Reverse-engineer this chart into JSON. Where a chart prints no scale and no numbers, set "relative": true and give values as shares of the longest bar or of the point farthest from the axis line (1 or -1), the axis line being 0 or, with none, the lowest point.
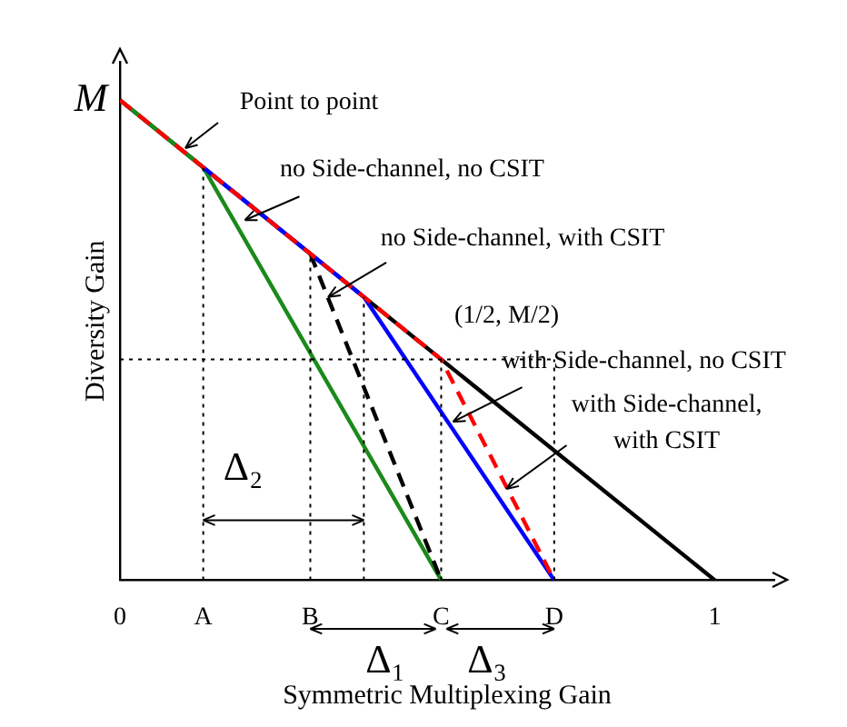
{
  "chart_data": {
    "type": "line",
    "xlabel": "Symmetric Multiplexing Gain",
    "ylabel": "Diversity Gain",
    "xlim": [
      0,
      1.1
    ],
    "relative": true,
    "xticks": [
      0,
      {
        "value": 0.14,
        "label": "A"
      },
      {
        "value": 0.32,
        "label": "B"
      },
      {
        "value": 0.54,
        "label": "C"
      },
      {
        "value": 0.73,
        "label": "D"
      },
      1
    ],
    "grid": false,
    "legend": false,
    "marker": "none",
    "series": [
      {
        "x": [
          0,
          1
        ],
        "values": [
          1,
          0
        ],
        "color": "#000000",
        "line_style": "solid"
      },
      {
        "x": [
          0,
          0.14,
          0.54
        ],
        "values": [
          1,
          0.86,
          0
        ],
        "color": "#1a8a1a",
        "line_style": "solid"
      },
      {
        "x": [
          0.14,
          0.41,
          0.73
        ],
        "values": [
          0.86,
          0.59,
          0
        ],
        "color": "#0000ff",
        "line_style": "solid"
      },
      {
        "x": [
          0.32,
          0.54
        ],
        "values": [
          0.68,
          0
        ],
        "color": "#000000",
        "line_style": "dashed"
      },
      {
        "x": [
          0,
          0.54,
          0.73
        ],
        "values": [
          1,
          0.46,
          0
        ],
        "color": "#ff0000",
        "line_style": "dashed"
      },
      {
        "x": [
          0.14,
          0.14
        ],
        "values": [
          0,
          0.86
        ],
        "color": "#000000",
        "line_style": "dotted"
      },
      {
        "x": [
          0.32,
          0.32
        ],
        "values": [
          0,
          0.68
        ],
        "color": "#000000",
        "line_style": "dotted"
      },
      {
        "x": [
          0.41,
          0.41
        ],
        "values": [
          0,
          0.59
        ],
        "color": "#000000",
        "line_style": "dotted"
      },
      {
        "x": [
          0.54,
          0.54
        ],
        "values": [
          0,
          0.46
        ],
        "color": "#000000",
        "line_style": "dotted"
      },
      {
        "x": [
          0.73,
          0.73
        ],
        "values": [
          0,
          0.46
        ],
        "color": "#000000",
        "line_style": "dotted"
      },
      {
        "x": [
          0,
          0.73
        ],
        "values": [
          0.46,
          0.46
        ],
        "color": "#000000",
        "line_style": "dotted"
      }
    ],
    "annotations": [
      {
        "text": "Point to point",
        "x": 0.11,
        "y": 0.9
      },
      {
        "text": "no Side-channel, no CSIT",
        "x": 0.21,
        "y": 0.75
      },
      {
        "text": "no Side-channel, with CSIT",
        "x": 0.35,
        "y": 0.59
      },
      {
        "text": "with Side-channel, no CSIT",
        "x": 0.56,
        "y": 0.33
      },
      {
        "text": "with Side-channel,\nwith CSIT",
        "x": 0.65,
        "y": 0.19
      },
      "M",
      "(1/2, M/2)",
      "Δ₂",
      "Δ₁",
      "Δ₃"
    ]
  }
}
